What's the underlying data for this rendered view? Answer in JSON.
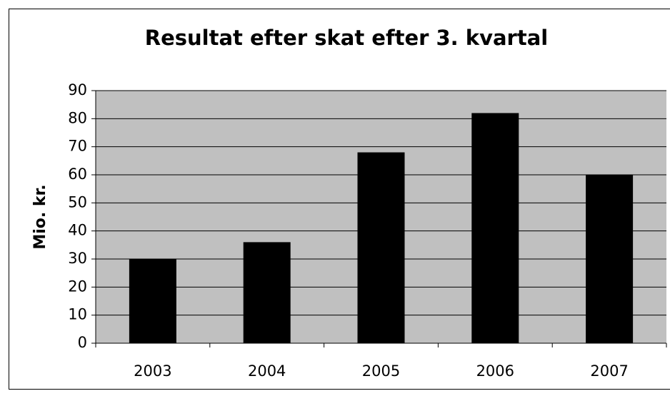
{
  "chart_data": {
    "type": "bar",
    "title": "Resultat efter skat efter 3. kvartal",
    "y_label": "Mio. kr.",
    "categories": [
      "2003",
      "2004",
      "2005",
      "2006",
      "2007"
    ],
    "values": [
      30,
      36,
      68,
      82,
      60
    ],
    "color": "#000000",
    "ylim": [
      0,
      90
    ],
    "yticks": [
      0,
      10,
      20,
      30,
      40,
      50,
      60,
      70,
      80,
      90
    ],
    "grid": true
  }
}
